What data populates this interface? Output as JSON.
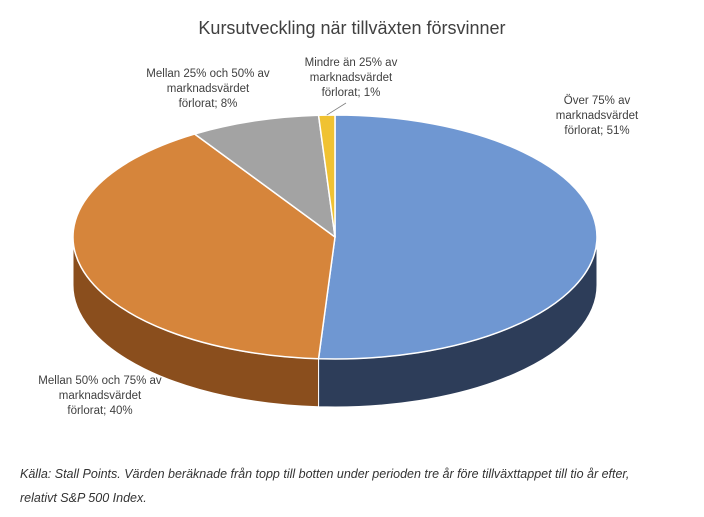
{
  "chart_data": {
    "type": "pie",
    "title": "Kursutveckling  när tillväxten försvinner",
    "slices": [
      {
        "label_lines": [
          "Över 75% av",
          "marknadsvärdet",
          "förlorat; 51%"
        ],
        "value": 51,
        "color": "#6f97d2",
        "side_color": "#2d3d59"
      },
      {
        "label_lines": [
          "Mellan 50% och 75% av",
          "marknadsvärdet",
          "förlorat; 40%"
        ],
        "value": 40,
        "color": "#d6853b",
        "side_color": "#8a4e1d"
      },
      {
        "label_lines": [
          "Mellan 25% och 50% av",
          "marknadsvärdet",
          "förlorat; 8%"
        ],
        "value": 8,
        "color": "#a3a3a3",
        "side_color": "#6e6e6e"
      },
      {
        "label_lines": [
          "Mindre än 25% av",
          "marknadsvärdet",
          "förlorat; 1%"
        ],
        "value": 1,
        "color": "#f0c232",
        "side_color": "#a98319"
      }
    ]
  },
  "caption": {
    "line1": "Källa: Stall Points. Värden beräknade från topp till botten under perioden tre år före tillväxttappet till tio år efter,",
    "line2": "relativt S&P 500 Index."
  }
}
